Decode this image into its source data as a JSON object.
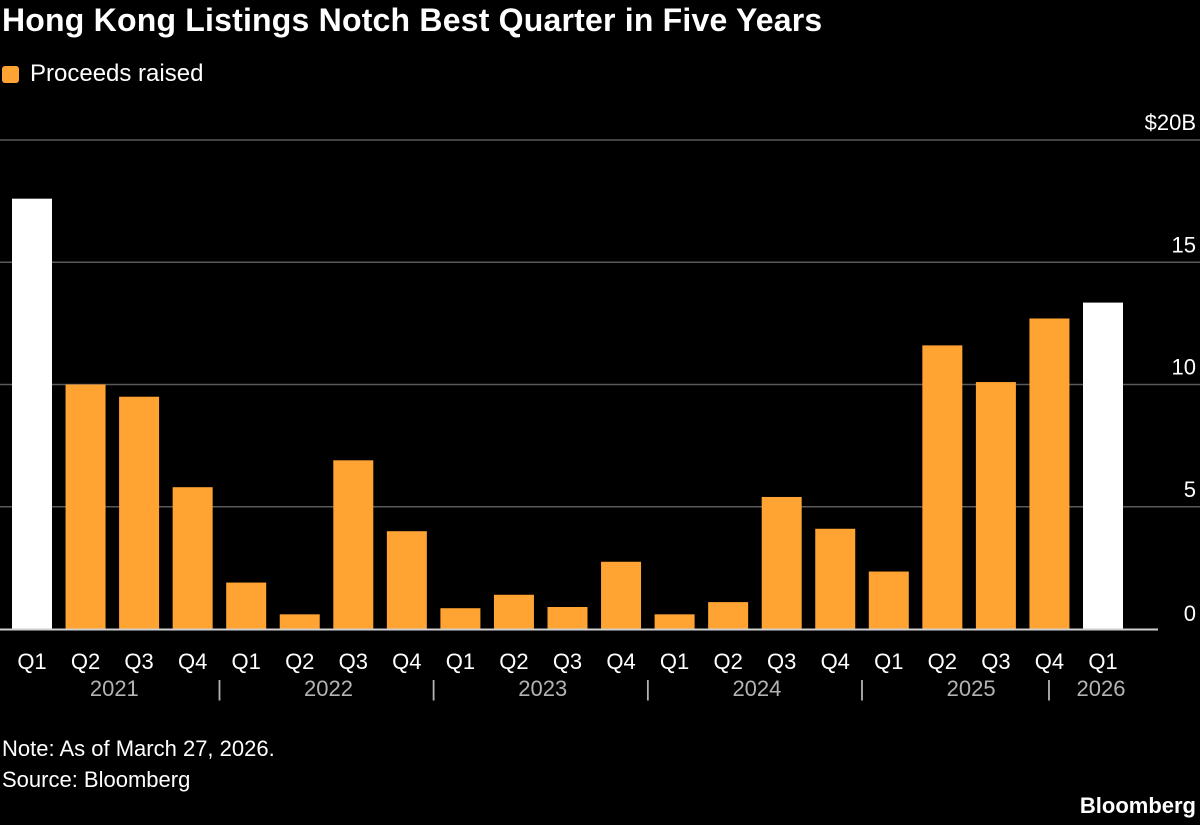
{
  "title": "Hong Kong Listings Notch Best Quarter in Five Years",
  "legend": {
    "label": "Proceeds raised",
    "color": "#ffa333"
  },
  "note": "Note: As of March 27, 2026.",
  "source": "Source: Bloomberg",
  "brand": "Bloomberg",
  "chart_data": {
    "type": "bar",
    "title": "Hong Kong Listings Notch Best Quarter in Five Years",
    "xlabel": "",
    "ylabel": "Proceeds raised",
    "ylim": [
      0,
      20
    ],
    "yticks": [
      {
        "value": 0,
        "label": "0"
      },
      {
        "value": 5,
        "label": "5"
      },
      {
        "value": 10,
        "label": "10"
      },
      {
        "value": 15,
        "label": "15"
      },
      {
        "value": 20,
        "label": "$20B"
      }
    ],
    "grid": true,
    "categories": [
      "Q1",
      "Q2",
      "Q3",
      "Q4",
      "Q1",
      "Q2",
      "Q3",
      "Q4",
      "Q1",
      "Q2",
      "Q3",
      "Q4",
      "Q1",
      "Q2",
      "Q3",
      "Q4",
      "Q1",
      "Q2",
      "Q3",
      "Q4",
      "Q1"
    ],
    "values": [
      17.6,
      10.0,
      9.5,
      5.8,
      1.9,
      0.6,
      6.9,
      4.0,
      0.85,
      1.4,
      0.9,
      2.75,
      0.6,
      1.1,
      5.4,
      4.1,
      2.35,
      11.6,
      10.1,
      12.7,
      13.35
    ],
    "highlight": [
      true,
      false,
      false,
      false,
      false,
      false,
      false,
      false,
      false,
      false,
      false,
      false,
      false,
      false,
      false,
      false,
      false,
      false,
      false,
      false,
      true
    ],
    "years": [
      {
        "label": "2021",
        "start": 0,
        "end": 3
      },
      {
        "label": "2022",
        "start": 4,
        "end": 7
      },
      {
        "label": "2023",
        "start": 8,
        "end": 11
      },
      {
        "label": "2024",
        "start": 12,
        "end": 15
      },
      {
        "label": "2025",
        "start": 16,
        "end": 19
      },
      {
        "label": "2026",
        "start": 20,
        "end": 20
      }
    ],
    "year_separator": "|",
    "colors": {
      "bar": "#ffa333",
      "highlight": "#ffffff",
      "grid": "#5a5a5a",
      "axis": "#cfcfcf"
    }
  }
}
